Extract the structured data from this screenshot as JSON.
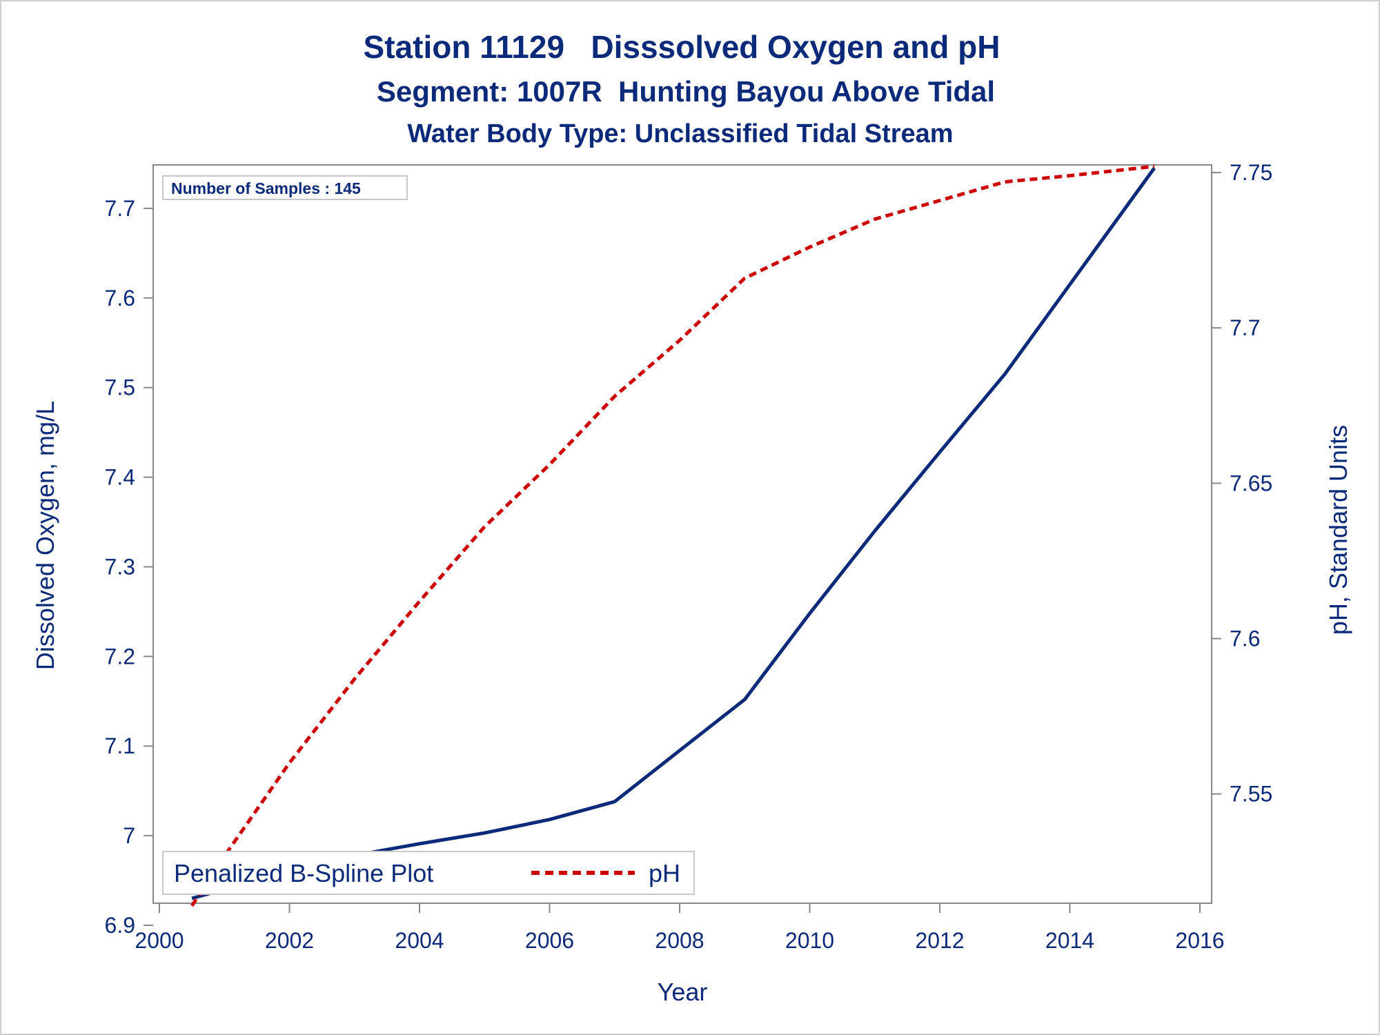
{
  "titles": {
    "line1": "Station 11129   Disssolved Oxygen and pH",
    "line2": "Segment: 1007R  Hunting Bayou Above Tidal",
    "line3": "Water Body Type: Unclassified Tidal Stream"
  },
  "inset": {
    "label": "Number of Samples : 145"
  },
  "legend": {
    "title": "Penalized B-Spline Plot",
    "items": [
      {
        "label": "pH"
      }
    ]
  },
  "colors": {
    "do_line": "#0c2a7a",
    "ph_line": "#cc0000",
    "text": "#0c2a7a",
    "axis": "#888888"
  },
  "chart_data": {
    "type": "line",
    "xlabel": "Year",
    "ylabel": "Dissolved Oxygen, mg/L",
    "y2label": "pH, Standard Units",
    "xlim": [
      2000,
      2016
    ],
    "ylim": [
      6.9,
      7.75
    ],
    "y2lim": [
      7.5115,
      7.7529
    ],
    "x_ticks": [
      2000,
      2002,
      2004,
      2006,
      2008,
      2010,
      2012,
      2014,
      2016
    ],
    "y_ticks": [
      "6.9",
      "7",
      "7.1",
      "7.2",
      "7.3",
      "7.4",
      "7.5",
      "7.6",
      "7.7"
    ],
    "y2_ticks": [
      "7.55",
      "7.6",
      "7.65",
      "7.7",
      "7.75"
    ],
    "grid": false,
    "legend_position": "bottom-left",
    "series": [
      {
        "axis": "left",
        "style": "solid",
        "x": [
          2000.5,
          2001.0,
          2002.0,
          2003.0,
          2004.0,
          2005.0,
          2006.0,
          2007.0,
          2008.0,
          2009.0,
          2010.0,
          2011.0,
          2012.0,
          2013.0,
          2014.0,
          2015.3
        ],
        "y": [
          6.93,
          6.94,
          6.961,
          6.978,
          6.991,
          7.003,
          7.018,
          7.038,
          7.095,
          7.152,
          7.248,
          7.34,
          7.428,
          7.515,
          7.615,
          7.745
        ]
      },
      {
        "name": "pH",
        "axis": "right",
        "style": "dashed",
        "x": [
          2000.5,
          2001.0,
          2002.0,
          2003.0,
          2004.0,
          2005.0,
          2006.0,
          2007.0,
          2008.0,
          2009.0,
          2010.0,
          2011.0,
          2012.0,
          2013.0,
          2014.0,
          2015.3
        ],
        "y": [
          7.514,
          7.53,
          7.56,
          7.587,
          7.612,
          7.636,
          7.656,
          7.678,
          7.696,
          7.716,
          7.726,
          7.735,
          7.741,
          7.747,
          7.749,
          7.752
        ]
      }
    ]
  }
}
